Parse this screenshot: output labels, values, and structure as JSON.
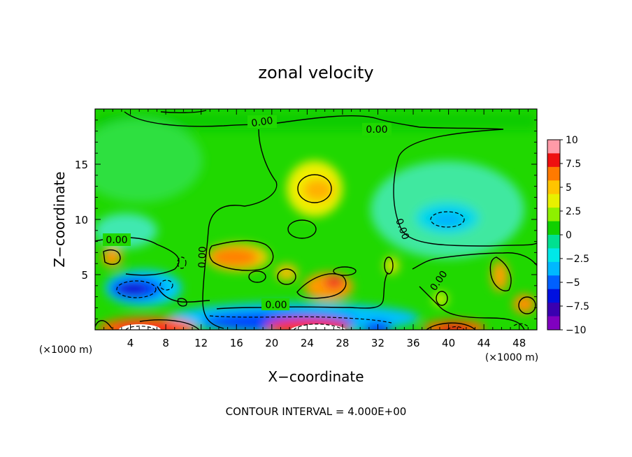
{
  "chart_data": {
    "type": "heatmap",
    "title": "zonal velocity",
    "xlabel": "X−coordinate",
    "ylabel": "Z−coordinate",
    "x_unit_left": "(×1000 m)",
    "x_unit_right": "(×1000 m)",
    "footer": "CONTOUR INTERVAL = 4.000E+00",
    "xlim": [
      0,
      50
    ],
    "ylim": [
      0,
      20
    ],
    "x_ticks": [
      4,
      8,
      12,
      16,
      20,
      24,
      28,
      32,
      36,
      40,
      44,
      48
    ],
    "y_ticks": [
      5,
      10,
      15
    ],
    "colorbar": {
      "ticks": [
        "10",
        "7.5",
        "5",
        "2.5",
        "0",
        "−2.5",
        "−5",
        "−7.5",
        "−10"
      ],
      "values": [
        10,
        7.5,
        5,
        2.5,
        0,
        -2.5,
        -5,
        -7.5,
        -10
      ],
      "colors": [
        "#ff9aa8",
        "#ee1010",
        "#ff7a00",
        "#ffc400",
        "#e8f000",
        "#8ef000",
        "#10d000",
        "#00e090",
        "#00e8e8",
        "#00b8ff",
        "#0060ff",
        "#0010e0",
        "#3a00b0",
        "#8000c0"
      ]
    },
    "contour_labels": [
      "0.00",
      "0.00",
      "0.00",
      "0.00",
      "0.00",
      "0.00",
      "0.00"
    ]
  }
}
